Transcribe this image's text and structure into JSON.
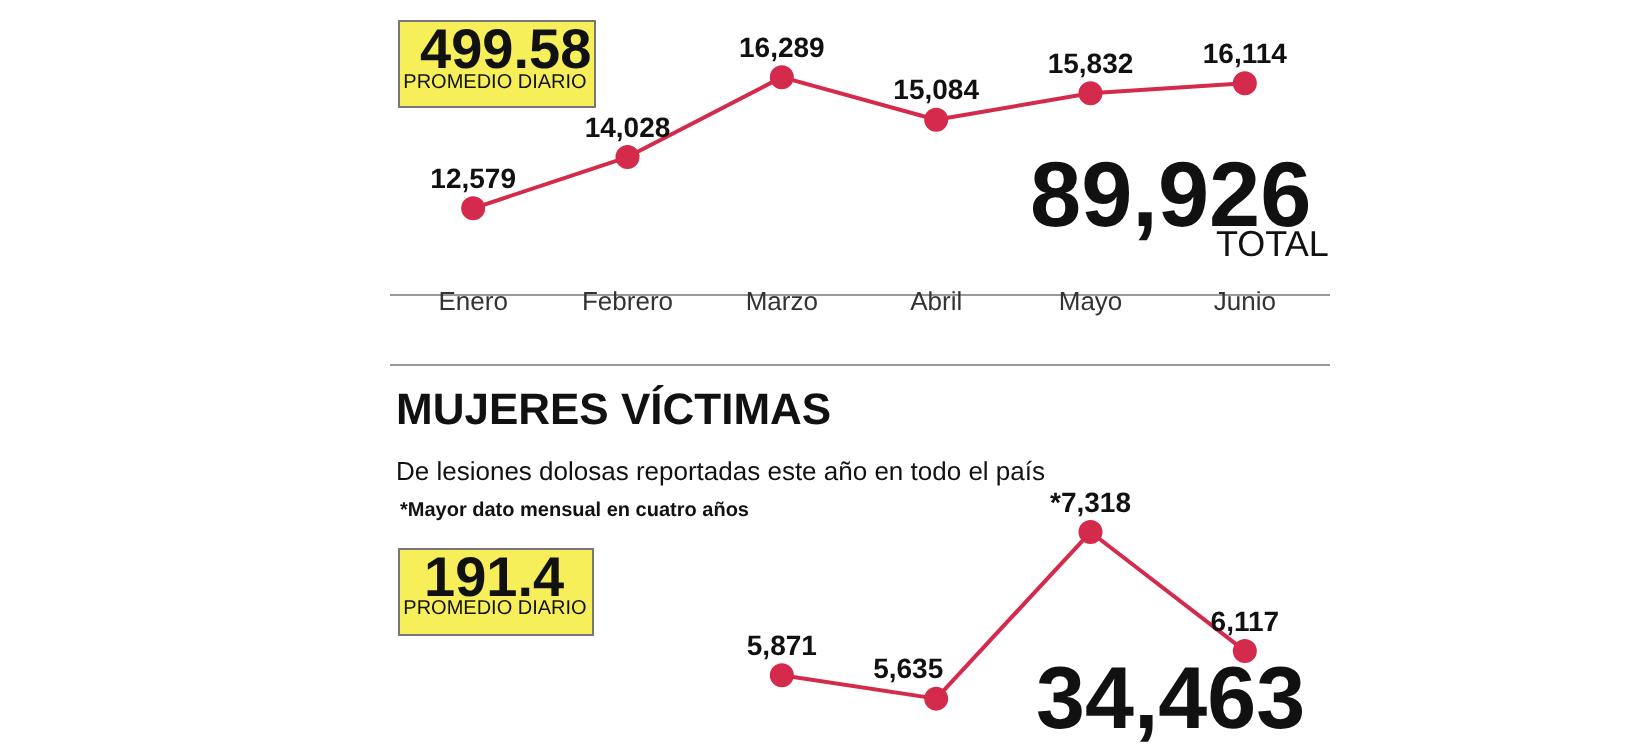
{
  "chart_data": [
    {
      "type": "line",
      "categories": [
        "Enero",
        "Febrero",
        "Marzo",
        "Abril",
        "Mayo",
        "Junio"
      ],
      "series": [
        {
          "color": "#d42a4c",
          "values": [
            12579,
            14028,
            16289,
            15084,
            15832,
            16114
          ],
          "value_labels": [
            "12,579",
            "14,028",
            "16,289",
            "15,084",
            "15,832",
            "16,114"
          ]
        }
      ],
      "annotations": [
        "499.58",
        "PROMEDIO DIARIO",
        "89,926",
        "TOTAL"
      ],
      "marker": "circle",
      "line_style": "solid",
      "tick_labels": "x"
    },
    {
      "type": "line",
      "title": "MUJERES VÍCTIMAS",
      "subtitle": "De lesiones dolosas reportadas este año en todo el país",
      "categories": [
        null,
        null,
        null,
        null,
        null,
        null
      ],
      "series": [
        {
          "color": "#d42a4c",
          "values": [
            null,
            null,
            5871,
            5635,
            7318,
            6117
          ],
          "value_labels": [
            null,
            null,
            "5,871",
            "5,635",
            "*7,318",
            "6,117"
          ]
        }
      ],
      "annotations": [
        "*Mayor dato mensual en cuatro años",
        "191.4",
        "PROMEDIO DIARIO",
        "34,463"
      ],
      "marker": "circle",
      "line_style": "solid",
      "tick_labels": false
    }
  ]
}
